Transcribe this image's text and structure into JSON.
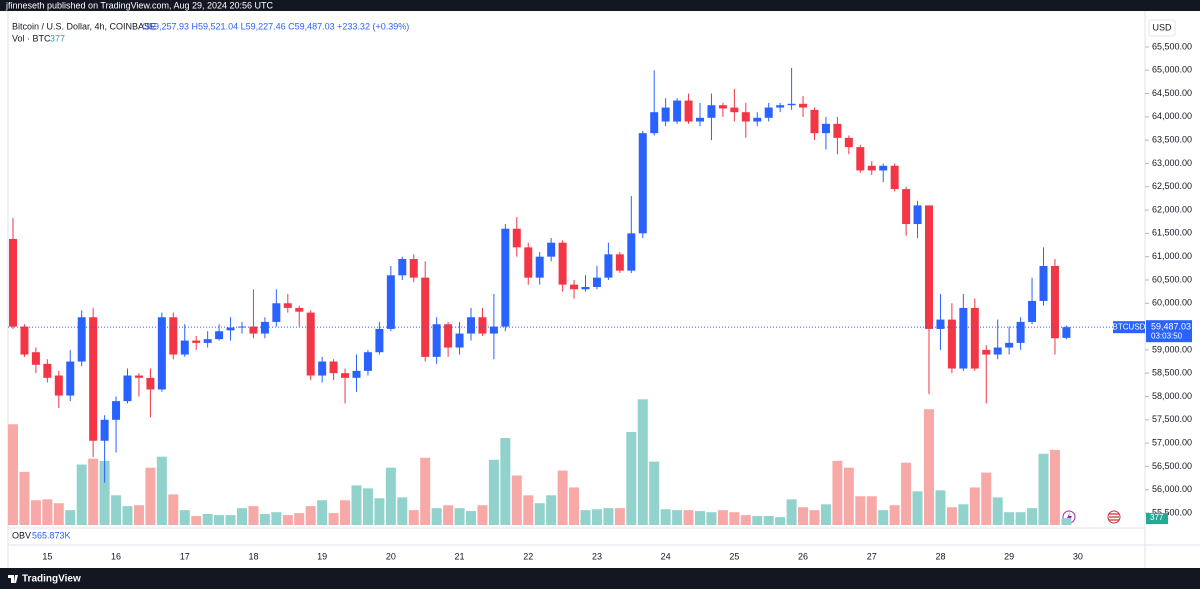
{
  "chart_data": {
    "type": "candlestick",
    "publisher_note": "jfinneseth published on TradingView.com, Aug 29, 2024 20:56 UTC",
    "title": "Bitcoin / U.S. Dollar, 4h, COINBASE",
    "legend_ohlc": "O59,257.93 H59,521.04 L59,227.46 C59,487.03 +233.32 (+0.39%)",
    "volume_label": "Vol · BTC",
    "currency": "USD",
    "brand": "TradingView",
    "obv": {
      "name": "OBV",
      "value_label": "565.873K"
    },
    "last_price": {
      "symbol": "BTCUSD",
      "value": 59487.03,
      "label": "59,487.03",
      "countdown": "03:03:50"
    },
    "up_color": "#2962ff",
    "down_color": "#f23645",
    "volume_up_color": "#92d2cc",
    "volume_down_color": "#f7a9a7",
    "grid": false,
    "categories": [
      null,
      null,
      null,
      "15",
      null,
      null,
      null,
      null,
      null,
      "16",
      null,
      null,
      null,
      null,
      null,
      "17",
      null,
      null,
      null,
      null,
      null,
      "18",
      null,
      null,
      null,
      null,
      null,
      "19",
      null,
      null,
      null,
      null,
      null,
      "20",
      null,
      null,
      null,
      null,
      null,
      "21",
      null,
      null,
      null,
      null,
      null,
      "22",
      null,
      null,
      null,
      null,
      null,
      "23",
      null,
      null,
      null,
      null,
      null,
      "24",
      null,
      null,
      null,
      null,
      null,
      "25",
      null,
      null,
      null,
      null,
      null,
      "26",
      null,
      null,
      null,
      null,
      null,
      "27",
      null,
      null,
      null,
      null,
      null,
      "28",
      null,
      null,
      null,
      null,
      null,
      "29",
      null,
      null,
      null,
      null,
      null,
      "30"
    ],
    "series": [
      {
        "name": "BTCUSD",
        "open": [
          61380,
          59500,
          58950,
          58700,
          58450,
          58020,
          58750,
          59700,
          57050,
          57500,
          57900,
          58450,
          58400,
          58150,
          59700,
          58900,
          59200,
          59150,
          59230,
          59420,
          59480,
          59500,
          59350,
          59600,
          60000,
          59900,
          59800,
          58450,
          58750,
          58500,
          58400,
          58550,
          58950,
          59450,
          60600,
          60950,
          60550,
          58850,
          59550,
          59050,
          59350,
          59700,
          59350,
          59500,
          61600,
          61200,
          60550,
          61000,
          61300,
          60400,
          60300,
          60350,
          60550,
          61050,
          60700,
          61500,
          63650,
          63900,
          63900,
          64350,
          63900,
          63980,
          64250,
          64200,
          64100,
          63900,
          63980,
          64200,
          64250,
          64280,
          64150,
          63650,
          63850,
          63550,
          63350,
          62950,
          62850,
          62950,
          62450,
          61700,
          62100,
          59450,
          59650,
          58600,
          59900,
          59000,
          58900,
          59050,
          59150,
          59600,
          60050,
          60800,
          59257.93,
          null
        ],
        "high": [
          61830,
          59550,
          59050,
          58800,
          58550,
          59000,
          59850,
          59900,
          57600,
          58000,
          58600,
          58500,
          58600,
          59800,
          59800,
          59550,
          59300,
          59400,
          59550,
          59700,
          59600,
          60300,
          59700,
          60300,
          60200,
          59950,
          59850,
          58850,
          58800,
          58600,
          58900,
          59000,
          59600,
          60800,
          61000,
          61050,
          60900,
          59700,
          59600,
          59600,
          59900,
          59900,
          60200,
          61700,
          61850,
          61300,
          61100,
          61400,
          61350,
          60500,
          60600,
          60800,
          61300,
          61100,
          62300,
          63700,
          65000,
          64400,
          64400,
          64500,
          64300,
          64500,
          64300,
          64600,
          64300,
          64100,
          64300,
          64300,
          65050,
          64450,
          64200,
          64000,
          64000,
          63600,
          63400,
          63050,
          63000,
          63000,
          62500,
          62200,
          62100,
          60200,
          60000,
          60200,
          60100,
          59100,
          59650,
          59500,
          59700,
          60550,
          61200,
          60950,
          59521.04,
          null
        ],
        "low": [
          59450,
          58850,
          58500,
          58300,
          57750,
          57900,
          58650,
          56700,
          56150,
          56800,
          57850,
          58000,
          57550,
          58100,
          58800,
          58850,
          59000,
          59050,
          59200,
          59200,
          59350,
          59250,
          59250,
          59500,
          59800,
          59500,
          58350,
          58300,
          58350,
          57850,
          58100,
          58450,
          58900,
          59400,
          60500,
          60450,
          58750,
          58700,
          58850,
          58900,
          59200,
          59300,
          58800,
          59400,
          61000,
          60400,
          60400,
          60900,
          60250,
          60100,
          60250,
          60300,
          60500,
          60650,
          60650,
          61400,
          63600,
          63800,
          63850,
          63850,
          63800,
          63500,
          64000,
          63900,
          63550,
          63800,
          63900,
          64100,
          64150,
          64000,
          63500,
          63300,
          63200,
          63200,
          62800,
          62750,
          62600,
          62400,
          61450,
          61400,
          58050,
          59000,
          58500,
          58550,
          58550,
          57850,
          58800,
          58900,
          59000,
          59550,
          59950,
          58900,
          59227.46,
          null
        ],
        "close": [
          59500,
          58900,
          58680,
          58400,
          58020,
          58750,
          59700,
          57050,
          57500,
          57900,
          58450,
          58400,
          58150,
          59700,
          58900,
          59200,
          59150,
          59230,
          59400,
          59480,
          59500,
          59350,
          59600,
          60000,
          59900,
          59820,
          58450,
          58750,
          58500,
          58400,
          58550,
          58950,
          59450,
          60600,
          60950,
          60550,
          58850,
          59550,
          59050,
          59350,
          59700,
          59350,
          59500,
          61600,
          61200,
          60550,
          61000,
          61300,
          60400,
          60300,
          60350,
          60550,
          61050,
          60700,
          61500,
          63650,
          64100,
          64200,
          64350,
          63900,
          63980,
          64250,
          64180,
          64100,
          63900,
          63980,
          64200,
          64250,
          64280,
          64200,
          63650,
          63850,
          63550,
          63350,
          62850,
          62850,
          62950,
          62450,
          61700,
          62100,
          59450,
          59650,
          58600,
          59900,
          58600,
          58900,
          59050,
          59150,
          59600,
          60050,
          60800,
          59250,
          59487.03,
          null
        ]
      }
    ],
    "volume": {
      "values": [
        5500,
        2900,
        1350,
        1400,
        1190,
        810,
        3300,
        3620,
        3500,
        1620,
        1030,
        1080,
        3130,
        3730,
        1670,
        810,
        490,
        600,
        540,
        540,
        920,
        1030,
        600,
        700,
        540,
        650,
        1030,
        1350,
        650,
        1350,
        2160,
        2000,
        1460,
        3130,
        1510,
        810,
        3670,
        920,
        1080,
        920,
        760,
        1080,
        3560,
        4750,
        2700,
        1620,
        1190,
        1620,
        2970,
        2050,
        810,
        860,
        920,
        920,
        5080,
        6860,
        3460,
        860,
        810,
        810,
        760,
        700,
        810,
        700,
        540,
        490,
        490,
        430,
        1400,
        970,
        810,
        1130,
        3500,
        3130,
        1570,
        1570,
        810,
        1080,
        3400,
        1840,
        6320,
        1890,
        970,
        1130,
        2050,
        2860,
        1510,
        700,
        700,
        920,
        3890,
        4100,
        377,
        null
      ],
      "ylim": [
        0,
        28000
      ]
    },
    "ylim": [
      55135,
      66250
    ],
    "yticks": [
      {
        "value": 55500,
        "label": "55,500.00"
      },
      {
        "value": 56000,
        "label": "56,000.00"
      },
      {
        "value": 56500,
        "label": "56,500.00"
      },
      {
        "value": 57000,
        "label": "57,000.00"
      },
      {
        "value": 57500,
        "label": "57,500.00"
      },
      {
        "value": 58000,
        "label": "58,000.00"
      },
      {
        "value": 58500,
        "label": "58,500.00"
      },
      {
        "value": 59000,
        "label": "59,000.00"
      },
      {
        "value": 59500,
        "label": "59,500.00"
      },
      {
        "value": 60000,
        "label": "60,000.00"
      },
      {
        "value": 60500,
        "label": "60,500.00"
      },
      {
        "value": 61000,
        "label": "61,000.00"
      },
      {
        "value": 61500,
        "label": "61,500.00"
      },
      {
        "value": 62000,
        "label": "62,000.00"
      },
      {
        "value": 62500,
        "label": "62,500.00"
      },
      {
        "value": 63000,
        "label": "63,000.00"
      },
      {
        "value": 63500,
        "label": "63,500.00"
      },
      {
        "value": 64000,
        "label": "64,000.00"
      },
      {
        "value": 64500,
        "label": "64,500.00"
      },
      {
        "value": 65000,
        "label": "65,000.00"
      },
      {
        "value": 65500,
        "label": "65,500.00"
      }
    ]
  }
}
